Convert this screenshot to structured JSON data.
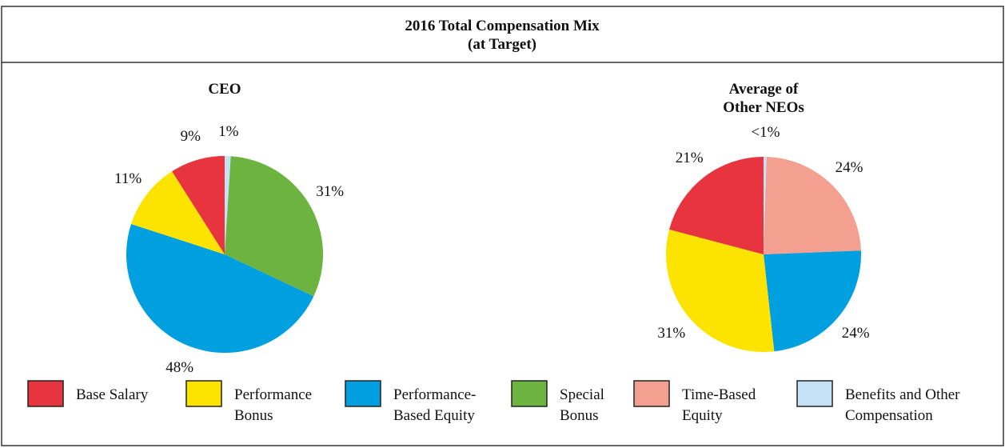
{
  "title": "2016 Total Compensation Mix",
  "subtitle": "(at Target)",
  "legend": [
    {
      "name": "Base Salary",
      "color": "#e8343f"
    },
    {
      "name": "Performance\nBonus",
      "color": "#fde300"
    },
    {
      "name": "Performance-\nBased Equity",
      "color": "#00a0e0"
    },
    {
      "name": "Special\nBonus",
      "color": "#6cb33f"
    },
    {
      "name": "Time-Based\nEquity",
      "color": "#f4a090"
    },
    {
      "name": "Benefits and Other\nCompensation",
      "color": "#c5e1f5"
    }
  ],
  "chart_data": [
    {
      "type": "pie",
      "title": "CEO",
      "categories": [
        "Benefits and Other Compensation",
        "Special Bonus",
        "Performance-Based Equity",
        "Performance Bonus",
        "Base Salary"
      ],
      "values": [
        1,
        31,
        48,
        11,
        9
      ],
      "value_labels": [
        "1%",
        "31%",
        "48%",
        "11%",
        "9%"
      ],
      "colors": [
        "#c5e1f5",
        "#6cb33f",
        "#00a0e0",
        "#fde300",
        "#e8343f"
      ]
    },
    {
      "type": "pie",
      "title": "Average of\nOther NEOs",
      "categories": [
        "Benefits and Other Compensation",
        "Time-Based Equity",
        "Performance-Based Equity",
        "Performance Bonus",
        "Base Salary"
      ],
      "values": [
        0.5,
        24,
        24,
        31,
        21
      ],
      "value_labels": [
        "<1%",
        "24%",
        "24%",
        "31%",
        "21%"
      ],
      "colors": [
        "#c5e1f5",
        "#f4a090",
        "#00a0e0",
        "#fde300",
        "#e8343f"
      ]
    }
  ]
}
